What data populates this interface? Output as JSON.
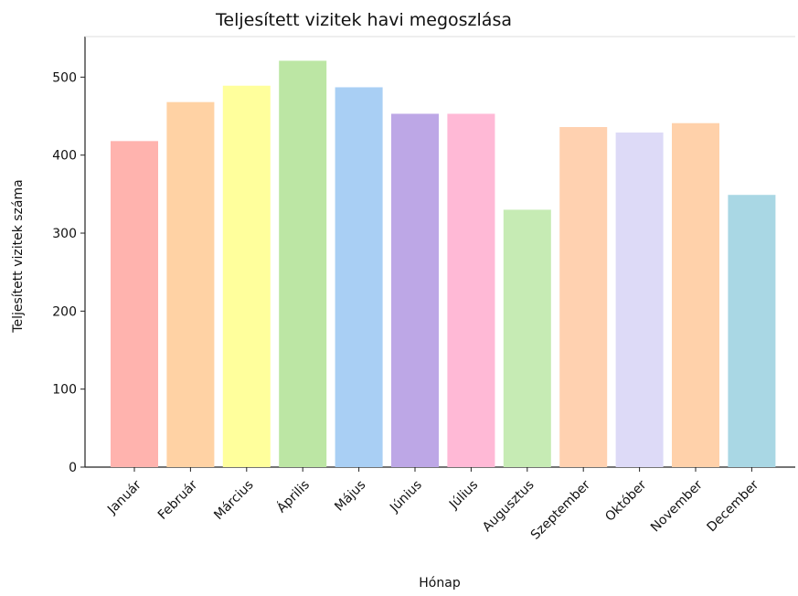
{
  "chart_data": {
    "type": "bar",
    "title": "Teljesített vizitek havi megoszlása",
    "x_label": "Hónap",
    "y_label": "Teljesített vizitek száma",
    "categories": [
      "Január",
      "Február",
      "Március",
      "Április",
      "Május",
      "Június",
      "Július",
      "Augusztus",
      "Szeptember",
      "Október",
      "November",
      "December"
    ],
    "values": [
      418,
      468,
      489,
      521,
      487,
      453,
      453,
      330,
      436,
      429,
      441,
      349
    ],
    "colors": [
      "#ffb3ae",
      "#ffd2a4",
      "#ffff9c",
      "#bce6a4",
      "#a9cff4",
      "#bda7e6",
      "#ffb9d6",
      "#c6ebb4",
      "#ffd1b0",
      "#dddaf7",
      "#ffd1aa",
      "#a9d7e4"
    ],
    "ylim": [
      0,
      552
    ],
    "yticks": [
      0,
      100,
      200,
      300,
      400,
      500
    ],
    "grid": false
  }
}
